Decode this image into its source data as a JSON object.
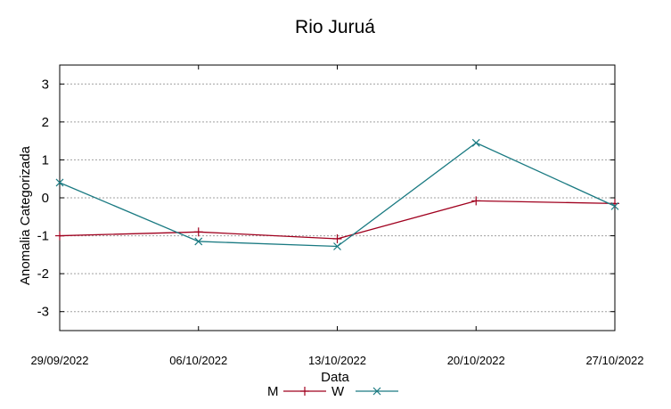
{
  "chart_data": {
    "type": "line",
    "title": "Rio Juruá",
    "xlabel": "Data",
    "ylabel": "Anomalia Categorizada",
    "categories": [
      "29/09/2022",
      "06/10/2022",
      "13/10/2022",
      "20/10/2022",
      "27/10/2022"
    ],
    "ylim": [
      -3.5,
      3.5
    ],
    "yticks": [
      -3,
      -2,
      -1,
      0,
      1,
      2,
      3
    ],
    "grid": true,
    "legend_position": "bottom",
    "series": [
      {
        "name": "M",
        "color": "#a0001e",
        "marker": "plus",
        "values": [
          -1.0,
          -0.9,
          -1.08,
          -0.08,
          -0.15
        ]
      },
      {
        "name": "W",
        "color": "#1a7a82",
        "marker": "x",
        "values": [
          0.4,
          -1.15,
          -1.28,
          1.45,
          -0.22
        ]
      }
    ]
  }
}
